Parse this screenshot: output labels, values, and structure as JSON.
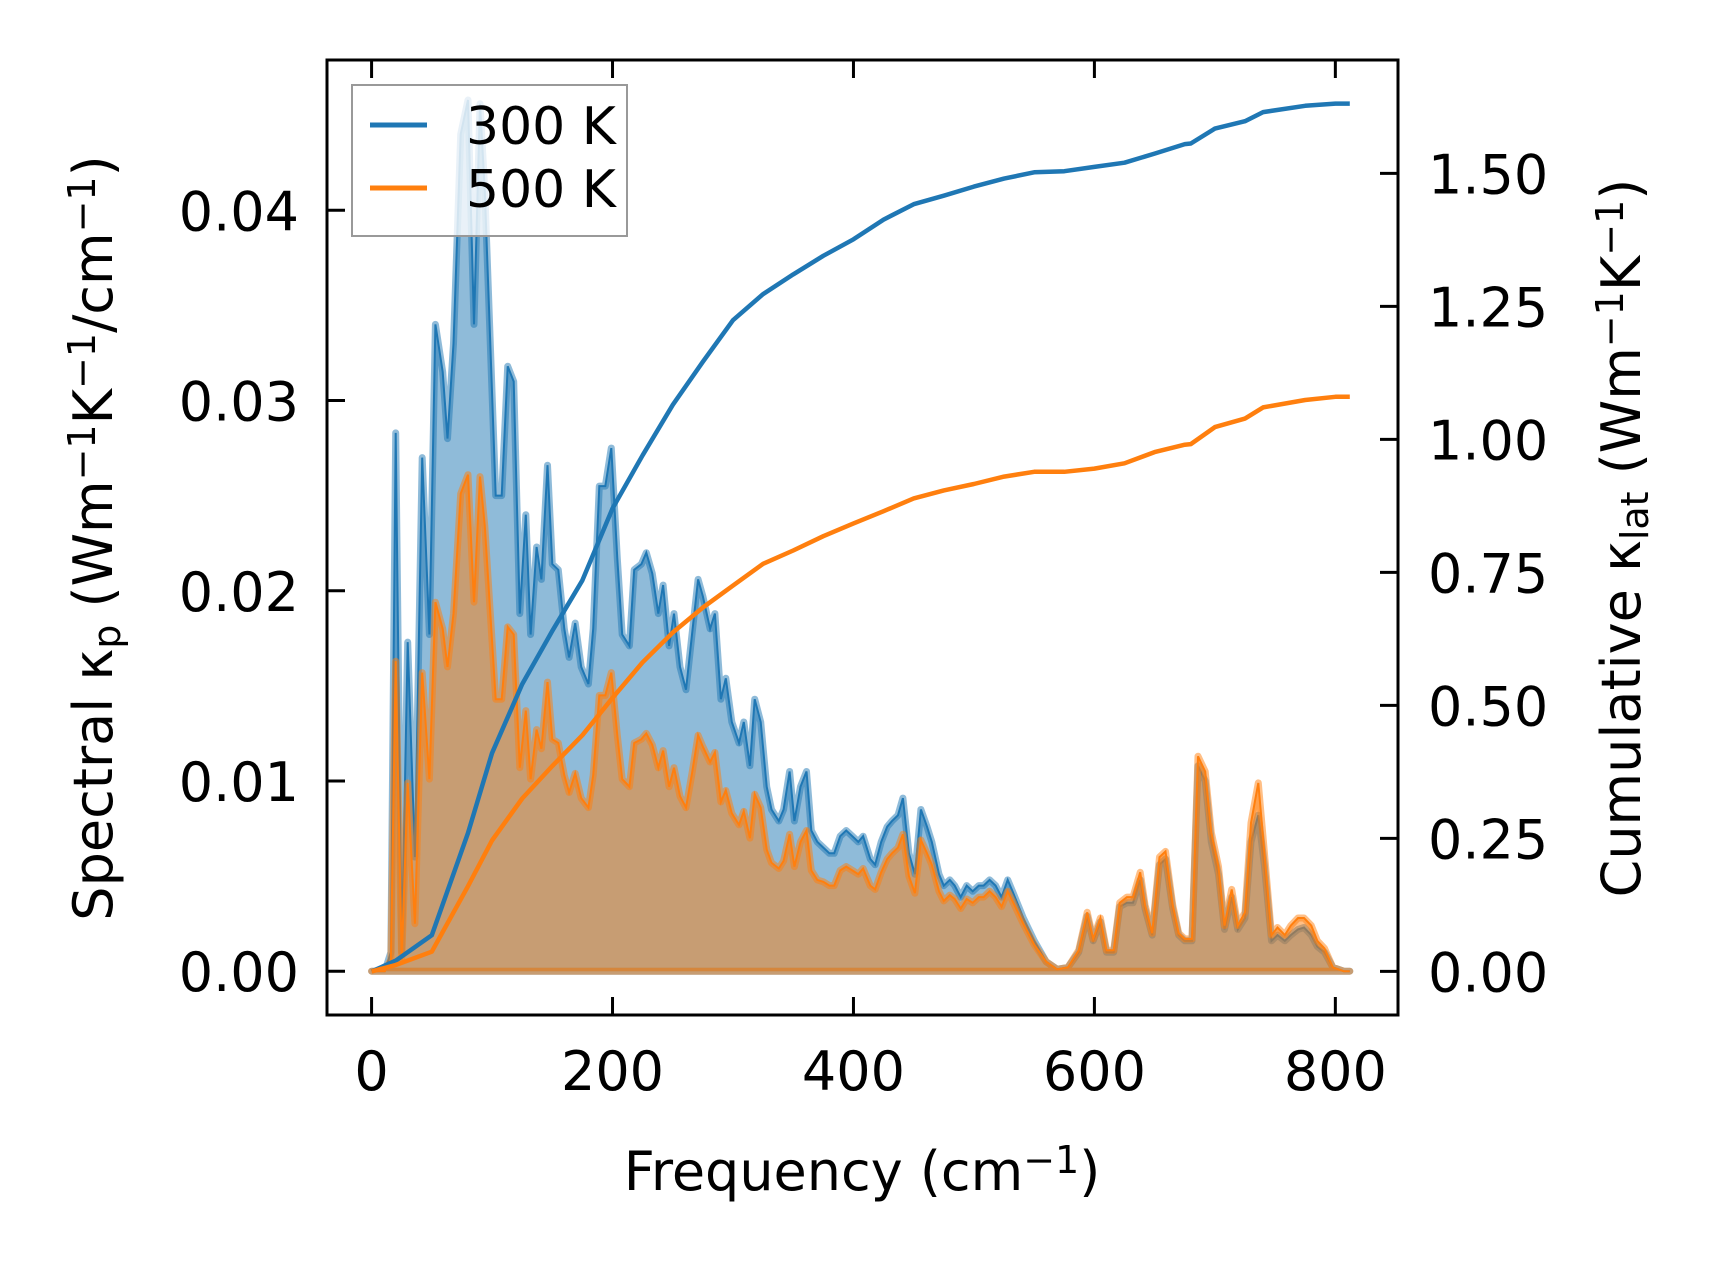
{
  "chart_data": {
    "type": "area",
    "title": "",
    "xlabel": {
      "parts": [
        {
          "t": "Frequency (cm"
        },
        {
          "t": "−1",
          "sup": true
        },
        {
          "t": ")"
        }
      ]
    },
    "ylabel_left": {
      "parts": [
        {
          "t": "Spectral κ"
        },
        {
          "t": "p",
          "sub": true
        },
        {
          "t": " (Wm"
        },
        {
          "t": "−1",
          "sup": true
        },
        {
          "t": "K"
        },
        {
          "t": "−1",
          "sup": true
        },
        {
          "t": "/cm"
        },
        {
          "t": "−1",
          "sup": true
        },
        {
          "t": ")"
        }
      ]
    },
    "ylabel_right": {
      "parts": [
        {
          "t": "Cumulative κ"
        },
        {
          "t": "lat",
          "sub": true
        },
        {
          "t": " (Wm"
        },
        {
          "t": "−1",
          "sup": true
        },
        {
          "t": "K"
        },
        {
          "t": "−1",
          "sup": true
        },
        {
          "t": ")"
        }
      ]
    },
    "xlim": [
      -37,
      852
    ],
    "ylim_left": [
      -0.0023,
      0.0479
    ],
    "ylim_right": [
      -0.082,
      1.713
    ],
    "xticks": [
      0,
      200,
      400,
      600,
      800
    ],
    "xtick_labels": [
      "0",
      "200",
      "400",
      "600",
      "800"
    ],
    "yticks_left": [
      0,
      0.01,
      0.02,
      0.03,
      0.04
    ],
    "ytick_labels_left": [
      "0.00",
      "0.01",
      "0.02",
      "0.03",
      "0.04"
    ],
    "yticks_right": [
      0,
      0.25,
      0.5,
      0.75,
      1.0,
      1.25,
      1.5
    ],
    "ytick_labels_right": [
      "0.00",
      "0.25",
      "0.50",
      "0.75",
      "1.00",
      "1.25",
      "1.50"
    ],
    "legend": {
      "placement": "upper-left",
      "entries": [
        "300 K",
        "500 K"
      ]
    },
    "grid": false,
    "frequency": [
      0,
      11,
      16,
      20,
      25,
      30,
      36,
      42,
      48,
      53,
      59,
      63,
      68,
      74,
      80,
      85,
      90,
      94,
      98,
      103,
      108,
      113,
      118,
      123,
      128,
      132,
      137,
      141,
      146,
      150,
      155,
      160,
      164,
      169,
      174,
      180,
      184,
      189,
      194,
      199,
      204,
      208,
      214,
      218,
      224,
      228,
      233,
      238,
      242,
      247,
      251,
      256,
      261,
      266,
      271,
      275,
      281,
      285,
      290,
      294,
      299,
      305,
      309,
      314,
      318,
      323,
      328,
      332,
      338,
      342,
      347,
      351,
      356,
      361,
      365,
      370,
      375,
      380,
      384,
      389,
      394,
      399,
      404,
      408,
      414,
      418,
      423,
      428,
      432,
      437,
      441,
      446,
      451,
      456,
      461,
      465,
      471,
      475,
      480,
      484,
      489,
      494,
      499,
      504,
      508,
      513,
      518,
      523,
      528,
      532,
      541,
      550,
      560,
      569,
      578,
      587,
      594,
      599,
      605,
      610,
      616,
      621,
      627,
      632,
      638,
      642,
      648,
      654,
      659,
      665,
      670,
      675,
      681,
      686,
      692,
      697,
      703,
      708,
      714,
      719,
      725,
      730,
      736,
      741,
      747,
      752,
      758,
      763,
      769,
      774,
      780,
      785,
      791,
      798,
      807,
      812
    ],
    "series": [
      {
        "name": "300 K",
        "color": "#1f77b4",
        "spectral": [
          0,
          0,
          0.001,
          0.0283,
          0.001,
          0.0173,
          0.006,
          0.027,
          0.0177,
          0.034,
          0.0315,
          0.028,
          0.033,
          0.044,
          0.0458,
          0.034,
          0.0456,
          0.041,
          0.034,
          0.025,
          0.025,
          0.0318,
          0.031,
          0.0188,
          0.024,
          0.0177,
          0.0223,
          0.0206,
          0.0266,
          0.0214,
          0.0211,
          0.018,
          0.0165,
          0.0183,
          0.016,
          0.0151,
          0.018,
          0.0255,
          0.0255,
          0.0275,
          0.0217,
          0.0177,
          0.0171,
          0.0211,
          0.0214,
          0.022,
          0.0209,
          0.0188,
          0.0203,
          0.0171,
          0.0188,
          0.016,
          0.0148,
          0.0177,
          0.0206,
          0.0197,
          0.018,
          0.0188,
          0.0143,
          0.0154,
          0.0131,
          0.012,
          0.0131,
          0.0108,
          0.0143,
          0.0131,
          0.0097,
          0.0085,
          0.0079,
          0.0085,
          0.0105,
          0.0079,
          0.0097,
          0.0105,
          0.0074,
          0.0068,
          0.0065,
          0.0062,
          0.0062,
          0.0071,
          0.0074,
          0.0071,
          0.0068,
          0.0071,
          0.0059,
          0.0056,
          0.0068,
          0.0076,
          0.0079,
          0.0082,
          0.0091,
          0.0062,
          0.0051,
          0.0085,
          0.0076,
          0.0068,
          0.0051,
          0.0045,
          0.0048,
          0.0045,
          0.0039,
          0.0045,
          0.0042,
          0.0045,
          0.0045,
          0.0048,
          0.0045,
          0.0039,
          0.0048,
          0.0042,
          0.0028,
          0.0016,
          0.0005,
          0.0001,
          0.0002,
          0.001,
          0.0029,
          0.0016,
          0.0026,
          0.001,
          0.001,
          0.0034,
          0.0036,
          0.0036,
          0.0048,
          0.0033,
          0.0019,
          0.0056,
          0.0059,
          0.0033,
          0.0019,
          0.0016,
          0.0016,
          0.0108,
          0.01,
          0.0068,
          0.0051,
          0.0022,
          0.0039,
          0.0022,
          0.0028,
          0.0068,
          0.0082,
          0.0056,
          0.0016,
          0.0019,
          0.0016,
          0.0019,
          0.0022,
          0.0023,
          0.0019,
          0.0013,
          0.001,
          0.0002,
          0,
          0
        ],
        "cumulative": {
          "x": [
            0,
            20,
            50,
            80,
            100,
            125,
            150,
            175,
            200,
            225,
            250,
            275,
            300,
            325,
            350,
            375,
            400,
            425,
            450,
            475,
            500,
            525,
            550,
            575,
            600,
            625,
            650,
            675,
            680,
            700,
            725,
            740,
            775,
            800,
            812
          ],
          "y": [
            0,
            0.02,
            0.068,
            0.26,
            0.41,
            0.54,
            0.64,
            0.735,
            0.87,
            0.97,
            1.065,
            1.146,
            1.224,
            1.273,
            1.31,
            1.345,
            1.376,
            1.413,
            1.442,
            1.458,
            1.475,
            1.49,
            1.502,
            1.504,
            1.512,
            1.52,
            1.537,
            1.555,
            1.556,
            1.584,
            1.598,
            1.615,
            1.627,
            1.631,
            1.631
          ]
        }
      },
      {
        "name": "500 K",
        "color": "#ff7f0e",
        "spectral": [
          0,
          0,
          0.0006,
          0.0163,
          0.0006,
          0.0099,
          0.0025,
          0.0157,
          0.0101,
          0.0194,
          0.018,
          0.016,
          0.0188,
          0.0251,
          0.0261,
          0.0194,
          0.026,
          0.0234,
          0.0194,
          0.0143,
          0.0143,
          0.0181,
          0.0177,
          0.0107,
          0.0137,
          0.0101,
          0.0127,
          0.0117,
          0.0152,
          0.0122,
          0.012,
          0.0103,
          0.0094,
          0.0104,
          0.0091,
          0.0086,
          0.0103,
          0.0145,
          0.0145,
          0.0157,
          0.0124,
          0.0101,
          0.0097,
          0.012,
          0.0122,
          0.0125,
          0.0119,
          0.0107,
          0.0116,
          0.0097,
          0.0107,
          0.0092,
          0.0086,
          0.0104,
          0.0124,
          0.0118,
          0.011,
          0.0115,
          0.0089,
          0.0095,
          0.0083,
          0.0077,
          0.0084,
          0.007,
          0.0093,
          0.0086,
          0.0064,
          0.0057,
          0.0054,
          0.0058,
          0.0072,
          0.0055,
          0.0068,
          0.0074,
          0.0053,
          0.0048,
          0.0047,
          0.0045,
          0.0045,
          0.0053,
          0.0055,
          0.0053,
          0.0051,
          0.0054,
          0.0045,
          0.0043,
          0.0052,
          0.0059,
          0.0062,
          0.0065,
          0.0072,
          0.005,
          0.0041,
          0.0069,
          0.0062,
          0.0056,
          0.0042,
          0.0037,
          0.004,
          0.0038,
          0.0033,
          0.0038,
          0.0036,
          0.0039,
          0.0039,
          0.0042,
          0.0039,
          0.0034,
          0.0042,
          0.0037,
          0.0025,
          0.0014,
          0.0005,
          0.0001,
          0.0002,
          0.0011,
          0.0031,
          0.0017,
          0.0028,
          0.0011,
          0.0011,
          0.0036,
          0.0039,
          0.0039,
          0.0052,
          0.0035,
          0.002,
          0.006,
          0.0063,
          0.0035,
          0.002,
          0.0017,
          0.0017,
          0.0113,
          0.0105,
          0.0073,
          0.0055,
          0.0024,
          0.0043,
          0.0024,
          0.0031,
          0.0078,
          0.0099,
          0.0063,
          0.0019,
          0.0023,
          0.0019,
          0.0024,
          0.0028,
          0.0028,
          0.0024,
          0.0016,
          0.0012,
          0.0002,
          0,
          0
        ],
        "cumulative": {
          "x": [
            0,
            20,
            50,
            80,
            100,
            125,
            150,
            175,
            200,
            225,
            250,
            275,
            300,
            325,
            350,
            375,
            400,
            425,
            450,
            475,
            500,
            525,
            550,
            575,
            600,
            625,
            650,
            675,
            680,
            700,
            725,
            740,
            775,
            800,
            812
          ],
          "y": [
            0,
            0.012,
            0.037,
            0.16,
            0.246,
            0.325,
            0.386,
            0.444,
            0.514,
            0.581,
            0.637,
            0.684,
            0.725,
            0.766,
            0.791,
            0.818,
            0.842,
            0.865,
            0.889,
            0.904,
            0.916,
            0.93,
            0.939,
            0.939,
            0.945,
            0.955,
            0.976,
            0.99,
            0.991,
            1.023,
            1.039,
            1.06,
            1.074,
            1.08,
            1.08
          ]
        }
      }
    ]
  }
}
